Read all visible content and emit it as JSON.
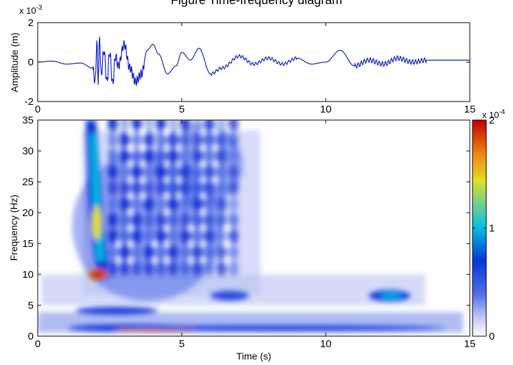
{
  "title_fragment": "Figure  Time-frequency diagram",
  "chart_data": [
    {
      "type": "line",
      "panel": "waveform",
      "xlabel": "",
      "ylabel": "Amplitude (m)",
      "xlim": [
        0,
        15
      ],
      "ylim": [
        -2,
        2
      ],
      "y_exponent": "x 10^-3",
      "y_exponent_base": "x 10",
      "y_exponent_power": "-3",
      "xticks": [
        "0",
        "5",
        "10",
        "15"
      ],
      "yticks": [
        "-2",
        "0",
        "2"
      ],
      "line_color": "#1020c0",
      "x": [
        0,
        0.5,
        1.0,
        1.5,
        1.9,
        2.0,
        2.05,
        2.1,
        2.15,
        2.2,
        2.3,
        2.4,
        2.5,
        2.6,
        2.7,
        2.8,
        3.0,
        3.2,
        3.4,
        3.6,
        3.8,
        4.0,
        4.2,
        4.5,
        4.8,
        5.0,
        5.3,
        5.6,
        6.0,
        6.4,
        7.0,
        7.5,
        8.0,
        8.5,
        9.0,
        9.5,
        10.0,
        10.5,
        11.0,
        11.5,
        12.0,
        12.5,
        13.0,
        13.5,
        14.0,
        14.5,
        15.0
      ],
      "y": [
        0,
        0.05,
        -0.1,
        -0.05,
        -0.3,
        -1.0,
        1.1,
        -0.9,
        1.3,
        -0.7,
        0.6,
        -1.0,
        0.5,
        -1.1,
        0.3,
        -0.2,
        0.9,
        -0.3,
        -1.0,
        -0.6,
        0.6,
        0.9,
        0.4,
        -0.6,
        -0.2,
        0.5,
        0.1,
        0.7,
        -0.6,
        -0.3,
        0.3,
        -0.1,
        0.2,
        -0.1,
        0.2,
        -0.1,
        0.0,
        0.6,
        -0.2,
        0.1,
        -0.1,
        0.2,
        0.0,
        0.1,
        0.1,
        0.1,
        0.1
      ]
    },
    {
      "type": "heatmap",
      "panel": "spectrogram",
      "xlabel": "Time (s)",
      "ylabel": "Frequency (Hz)",
      "xlim": [
        0,
        15
      ],
      "ylim": [
        0,
        35
      ],
      "xticks": [
        "0",
        "5",
        "10",
        "15"
      ],
      "yticks": [
        "0",
        "5",
        "10",
        "15",
        "20",
        "25",
        "30",
        "35"
      ],
      "colorbar": {
        "ticks": [
          "0",
          "1",
          "2"
        ],
        "range": [
          0,
          2
        ],
        "exponent": "x 10^-4",
        "exponent_base": "x 10",
        "exponent_power": "-4",
        "colormap": "jet"
      },
      "hotspots": [
        {
          "t": 2.25,
          "f": 10,
          "value": 1.9
        },
        {
          "t": 2.1,
          "f": 18,
          "value": 1.6
        },
        {
          "t": 2.05,
          "f": 28,
          "value": 1.1
        },
        {
          "t": 3.0,
          "f": 22,
          "value": 0.6
        },
        {
          "t": 5.5,
          "f": 27,
          "value": 0.5
        },
        {
          "t": 7.0,
          "f": 6,
          "value": 0.5
        },
        {
          "t": 12.3,
          "f": 6.3,
          "value": 0.7
        },
        {
          "t": 3.5,
          "f": 1,
          "value": 1.2
        }
      ]
    }
  ]
}
